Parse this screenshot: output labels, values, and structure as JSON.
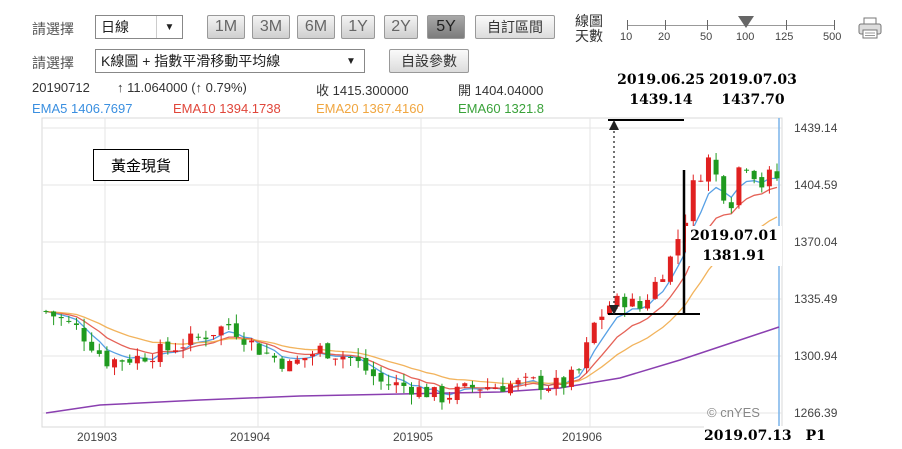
{
  "controls": {
    "period_label": "請選擇",
    "period_value": "日線",
    "indicator_label": "請選擇",
    "indicator_value": "K線圖 + 指數平滑移動平均線",
    "ranges": [
      "1M",
      "3M",
      "6M",
      "1Y",
      "2Y",
      "5Y"
    ],
    "active_range": "5Y",
    "custom_range_label": "自訂區間",
    "custom_params_label": "自設參數",
    "days_label_1": "線圖",
    "days_label_2": "天數",
    "days_ticks": [
      "10",
      "20",
      "50",
      "100",
      "125",
      "500"
    ],
    "days_selected": "100",
    "print_icon": "printer-icon"
  },
  "quote": {
    "date": "20190712",
    "change": "↑ 11.064000 (↑ 0.79%)",
    "close_label": "收",
    "close_value": "1415.300000",
    "open_label": "開",
    "open_value": "1404.04000"
  },
  "ema": [
    {
      "label": "EMA5",
      "value": "1406.7697",
      "color": "#3a8fe0"
    },
    {
      "label": "EMA10",
      "value": "1394.1738",
      "color": "#e0463a"
    },
    {
      "label": "EMA20",
      "value": "1367.4160",
      "color": "#f0a640"
    },
    {
      "label": "EMA60",
      "value": "1321.8",
      "color": "#3aa23a"
    }
  ],
  "chart_data": {
    "type": "candlestick",
    "x_tick_labels": [
      "201903",
      "201904",
      "201905",
      "201906"
    ],
    "y_tick_labels": [
      "1439.14",
      "1404.59",
      "1370.04",
      "1335.49",
      "1300.94",
      "1266.39"
    ],
    "ylim": [
      1266.39,
      1439.14
    ],
    "up_color": "#e02020",
    "down_color": "#1f9a1f",
    "watermark": "© cnYES",
    "annotations": {
      "title": "黃金現貨",
      "high_label_date": "2019.06.25",
      "high_label_value": "1439.14",
      "peak2_date": "2019.07.03",
      "peak2_value": "1437.70",
      "low_date": "2019.07.01",
      "low_value": "1381.91",
      "footer": "2019.07.13　P1"
    }
  }
}
